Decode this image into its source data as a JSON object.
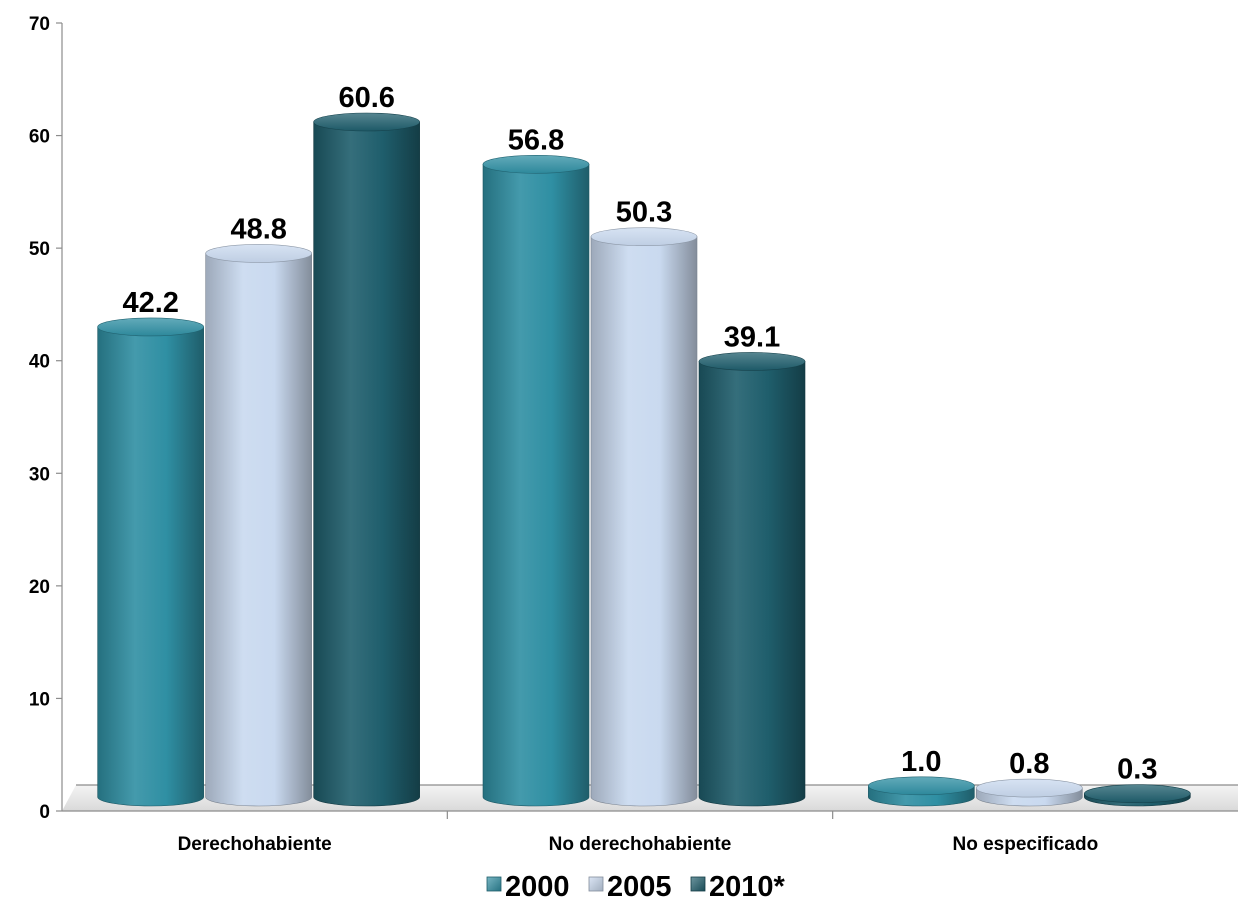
{
  "chart_data": {
    "type": "bar",
    "categories": [
      "Derechohabiente",
      "No derechohabiente",
      "No especificado"
    ],
    "series": [
      {
        "name": "2000",
        "values": [
          42.2,
          56.8,
          1.0
        ],
        "color": "#2f8fa3"
      },
      {
        "name": "2005",
        "values": [
          48.8,
          50.3,
          0.8
        ],
        "color": "#c9d9ef"
      },
      {
        "name": "2010*",
        "values": [
          60.6,
          39.1,
          0.3
        ],
        "color": "#1f5e6c"
      }
    ],
    "data_labels": [
      [
        "42.2",
        "56.8",
        "1.0"
      ],
      [
        "48.8",
        "50.3",
        "0.8"
      ],
      [
        "60.6",
        "39.1",
        "0.3"
      ]
    ],
    "y_ticks": [
      0,
      10,
      20,
      30,
      40,
      50,
      60,
      70
    ],
    "ylim": [
      0,
      70
    ],
    "grid": false,
    "legend": "bottom",
    "title": "",
    "xlabel": "",
    "ylabel": ""
  }
}
